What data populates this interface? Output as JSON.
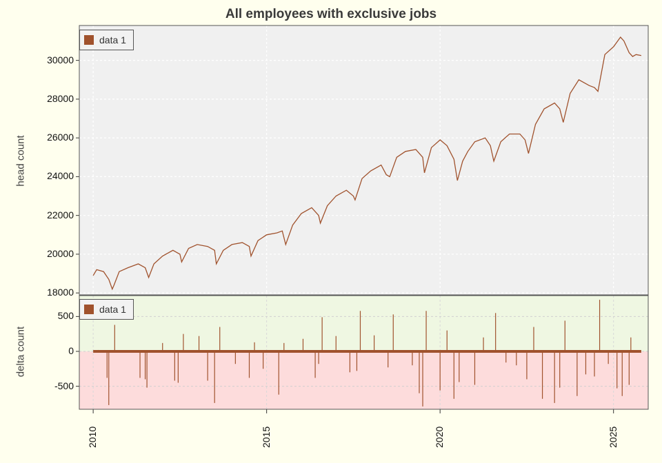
{
  "chart_data": [
    {
      "type": "line",
      "title": "All employees with exclusive jobs",
      "ylabel": "head count",
      "xlim": [
        2009.6,
        2026.0
      ],
      "ylim": [
        17900,
        31800
      ],
      "yticks": [
        18000,
        20000,
        22000,
        24000,
        26000,
        28000,
        30000
      ],
      "grid": true,
      "legend": "top-left",
      "series": [
        {
          "name": "data 1",
          "color": "#a0522d",
          "x": [
            2010.0,
            2010.1,
            2010.3,
            2010.45,
            2010.55,
            2010.6,
            2010.75,
            2011.0,
            2011.3,
            2011.5,
            2011.6,
            2011.75,
            2012.0,
            2012.3,
            2012.5,
            2012.55,
            2012.75,
            2013.0,
            2013.3,
            2013.5,
            2013.55,
            2013.75,
            2014.0,
            2014.3,
            2014.5,
            2014.55,
            2014.75,
            2015.0,
            2015.3,
            2015.45,
            2015.55,
            2015.75,
            2016.0,
            2016.3,
            2016.5,
            2016.55,
            2016.75,
            2017.0,
            2017.3,
            2017.5,
            2017.55,
            2017.75,
            2018.0,
            2018.3,
            2018.45,
            2018.55,
            2018.75,
            2019.0,
            2019.3,
            2019.5,
            2019.55,
            2019.75,
            2020.0,
            2020.2,
            2020.4,
            2020.5,
            2020.65,
            2020.8,
            2021.0,
            2021.3,
            2021.45,
            2021.55,
            2021.75,
            2022.0,
            2022.3,
            2022.45,
            2022.55,
            2022.75,
            2023.0,
            2023.3,
            2023.45,
            2023.55,
            2023.75,
            2024.0,
            2024.3,
            2024.45,
            2024.55,
            2024.75,
            2025.0,
            2025.2,
            2025.3,
            2025.45,
            2025.55,
            2025.65,
            2025.8
          ],
          "y": [
            18900,
            19200,
            19100,
            18700,
            18200,
            18400,
            19100,
            19300,
            19500,
            19300,
            18800,
            19500,
            19900,
            20200,
            20000,
            19600,
            20300,
            20500,
            20400,
            20200,
            19500,
            20200,
            20500,
            20600,
            20400,
            19900,
            20700,
            21000,
            21100,
            21200,
            20500,
            21500,
            22100,
            22400,
            22000,
            21600,
            22500,
            23000,
            23300,
            23000,
            22800,
            23900,
            24300,
            24600,
            24100,
            24000,
            25000,
            25300,
            25400,
            25000,
            24200,
            25500,
            25900,
            25600,
            24900,
            23800,
            24800,
            25300,
            25800,
            26000,
            25600,
            24800,
            25800,
            26200,
            26200,
            25900,
            25200,
            26700,
            27500,
            27800,
            27500,
            26800,
            28300,
            29000,
            28700,
            28600,
            28400,
            30300,
            30700,
            31200,
            31000,
            30400,
            30200,
            30300,
            30250
          ]
        }
      ]
    },
    {
      "type": "line",
      "ylabel": "delta count",
      "xlim": [
        2009.6,
        2026.0
      ],
      "ylim": [
        -830,
        800
      ],
      "yticks": [
        -500,
        0,
        500
      ],
      "xticks": [
        2010,
        2015,
        2020,
        2025
      ],
      "grid": true,
      "legend": "top-left",
      "background": {
        "positive": "#eff7e2",
        "negative": "#fddcdc"
      },
      "series": [
        {
          "name": "data 1",
          "color": "#a0522d",
          "spikes": [
            {
              "x": 2010.15,
              "y": 20
            },
            {
              "x": 2010.4,
              "y": -380
            },
            {
              "x": 2010.45,
              "y": -770
            },
            {
              "x": 2010.62,
              "y": 380
            },
            {
              "x": 2011.35,
              "y": -380
            },
            {
              "x": 2011.5,
              "y": -400
            },
            {
              "x": 2011.55,
              "y": -520
            },
            {
              "x": 2012.0,
              "y": 120
            },
            {
              "x": 2012.35,
              "y": -420
            },
            {
              "x": 2012.45,
              "y": -450
            },
            {
              "x": 2012.6,
              "y": 250
            },
            {
              "x": 2013.05,
              "y": 220
            },
            {
              "x": 2013.3,
              "y": -420
            },
            {
              "x": 2013.5,
              "y": -740
            },
            {
              "x": 2013.65,
              "y": 350
            },
            {
              "x": 2014.1,
              "y": -180
            },
            {
              "x": 2014.5,
              "y": -380
            },
            {
              "x": 2014.65,
              "y": 130
            },
            {
              "x": 2014.9,
              "y": -250
            },
            {
              "x": 2015.35,
              "y": -620
            },
            {
              "x": 2015.5,
              "y": 120
            },
            {
              "x": 2016.05,
              "y": 180
            },
            {
              "x": 2016.4,
              "y": -380
            },
            {
              "x": 2016.5,
              "y": -180
            },
            {
              "x": 2016.6,
              "y": 490
            },
            {
              "x": 2017.0,
              "y": 220
            },
            {
              "x": 2017.4,
              "y": -300
            },
            {
              "x": 2017.6,
              "y": -280
            },
            {
              "x": 2017.7,
              "y": 580
            },
            {
              "x": 2018.1,
              "y": 230
            },
            {
              "x": 2018.5,
              "y": -230
            },
            {
              "x": 2018.65,
              "y": 530
            },
            {
              "x": 2019.2,
              "y": -200
            },
            {
              "x": 2019.4,
              "y": -600
            },
            {
              "x": 2019.5,
              "y": -790
            },
            {
              "x": 2019.6,
              "y": 580
            },
            {
              "x": 2020.0,
              "y": -560
            },
            {
              "x": 2020.2,
              "y": 300
            },
            {
              "x": 2020.4,
              "y": -680
            },
            {
              "x": 2020.55,
              "y": -440
            },
            {
              "x": 2021.0,
              "y": -480
            },
            {
              "x": 2021.25,
              "y": 200
            },
            {
              "x": 2021.6,
              "y": 550
            },
            {
              "x": 2021.9,
              "y": -160
            },
            {
              "x": 2022.2,
              "y": -200
            },
            {
              "x": 2022.5,
              "y": -400
            },
            {
              "x": 2022.7,
              "y": 350
            },
            {
              "x": 2022.95,
              "y": -680
            },
            {
              "x": 2023.3,
              "y": -740
            },
            {
              "x": 2023.45,
              "y": -520
            },
            {
              "x": 2023.6,
              "y": 440
            },
            {
              "x": 2023.95,
              "y": -640
            },
            {
              "x": 2024.2,
              "y": -330
            },
            {
              "x": 2024.45,
              "y": -360
            },
            {
              "x": 2024.6,
              "y": 740
            },
            {
              "x": 2024.85,
              "y": -180
            },
            {
              "x": 2025.1,
              "y": -530
            },
            {
              "x": 2025.25,
              "y": -640
            },
            {
              "x": 2025.45,
              "y": -480
            },
            {
              "x": 2025.5,
              "y": 200
            }
          ]
        }
      ]
    }
  ]
}
